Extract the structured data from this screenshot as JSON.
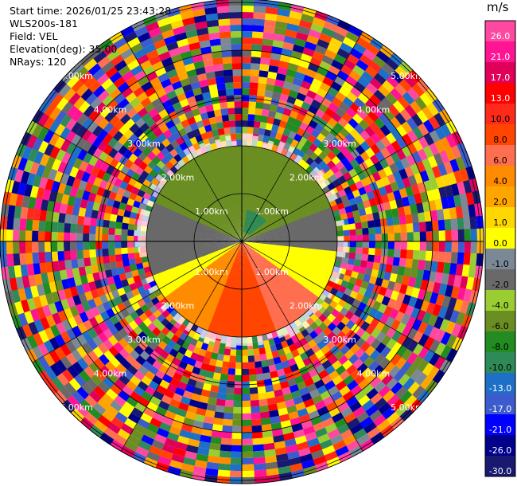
{
  "header": {
    "start_time": "Start time: 2026/01/25 23:43:28",
    "site": "WLS200s-181",
    "field": "Field: VEL",
    "elevation": "Elevation(deg): 35.00",
    "nrays": "NRays: 120"
  },
  "chart_data": {
    "type": "ppi",
    "field": "VEL",
    "nrays": 120,
    "elevation_deg": 35.0,
    "range_rings": [
      "1.00km",
      "2.00km",
      "3.00km",
      "4.00km",
      "5.00km"
    ],
    "ring_label_bearings_deg": [
      45,
      135,
      225,
      315
    ],
    "colorbar": {
      "unit": "m/s",
      "ticks": [
        "26.0",
        "21.0",
        "17.0",
        "13.0",
        "10.0",
        "8.0",
        "6.0",
        "4.0",
        "2.0",
        "1.0",
        "0.0",
        "-1.0",
        "-2.0",
        "-4.0",
        "-6.0",
        "-8.0",
        "-10.0",
        "-13.0",
        "-17.0",
        "-21.0",
        "-26.0",
        "-30.0"
      ],
      "colors": [
        "#ff49a0",
        "#ff1493",
        "#e0005a",
        "#ff0000",
        "#ff2a1a",
        "#ff4500",
        "#ff6f4f",
        "#ff8c00",
        "#ffa500",
        "#ffd700",
        "#ffff00",
        "#7b8896",
        "#696969",
        "#9acd32",
        "#6b8e23",
        "#228b22",
        "#2e8b57",
        "#1e6fc8",
        "#3c5ccd",
        "#0000ff",
        "#00008b",
        "#191970"
      ]
    },
    "near_field": {
      "sectors": [
        {
          "from_deg": 295,
          "to_deg": 360,
          "value": -6
        },
        {
          "from_deg": 0,
          "to_deg": 70,
          "value": -6
        },
        {
          "from_deg": 250,
          "to_deg": 295,
          "value": -2
        },
        {
          "from_deg": 70,
          "to_deg": 95,
          "value": -2
        },
        {
          "from_deg": 95,
          "to_deg": 125,
          "value": 0
        },
        {
          "from_deg": 235,
          "to_deg": 250,
          "value": 0
        },
        {
          "from_deg": 125,
          "to_deg": 160,
          "value": 6
        },
        {
          "from_deg": 200,
          "to_deg": 235,
          "value": 4
        },
        {
          "from_deg": 160,
          "to_deg": 200,
          "value": 8
        }
      ],
      "core": [
        {
          "from_deg": 10,
          "to_deg": 50,
          "value": -10
        }
      ]
    }
  }
}
